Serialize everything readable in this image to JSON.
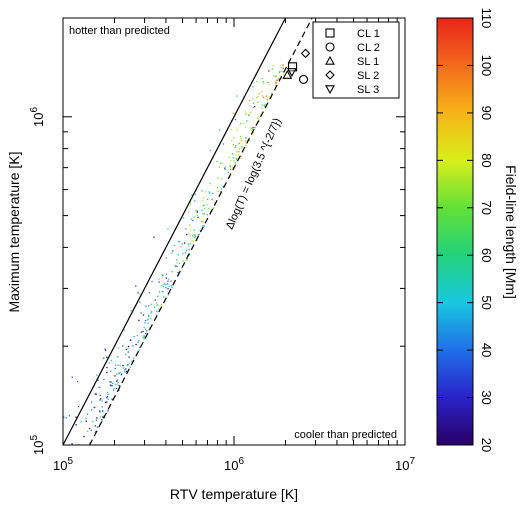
{
  "chart_data": {
    "type": "scatter",
    "xscale": "log",
    "yscale": "log",
    "xlim": [
      100000,
      10000000
    ],
    "ylim": [
      100000,
      2000000
    ],
    "xlabel": "RTV temperature [K]",
    "ylabel": "Maximum temperature [K]",
    "x_tick_labels": [
      {
        "mantissa": "10",
        "exp": "5"
      },
      {
        "mantissa": "10",
        "exp": "6"
      },
      {
        "mantissa": "10",
        "exp": "7"
      }
    ],
    "y_tick_labels": [
      {
        "mantissa": "10",
        "exp": "5"
      },
      {
        "mantissa": "10",
        "exp": "6"
      }
    ],
    "annotations": {
      "top_left": "hotter than predicted",
      "bottom_right": "cooler than predicted",
      "dashed_line_label": "Δlog(T) = log(3.5 ^{-2/7})"
    },
    "reference_lines": [
      {
        "style": "solid",
        "relation": "y = x"
      },
      {
        "style": "dashed",
        "relation": "y = x · 3.5^(-2/7)"
      }
    ],
    "legend": {
      "placement": "top-right",
      "entries": [
        {
          "marker": "square",
          "label": "CL 1"
        },
        {
          "marker": "circle",
          "label": "CL 2"
        },
        {
          "marker": "triangle-up",
          "label": "SL 1"
        },
        {
          "marker": "diamond",
          "label": "SL 2"
        },
        {
          "marker": "triangle-down",
          "label": "SL 3"
        }
      ]
    },
    "marked_points": [
      {
        "marker": "square",
        "x": 2200000,
        "y": 1420000
      },
      {
        "marker": "circle",
        "x": 2550000,
        "y": 1300000
      },
      {
        "marker": "triangle-up",
        "x": 2050000,
        "y": 1340000
      },
      {
        "marker": "diamond",
        "x": 2620000,
        "y": 1560000
      },
      {
        "marker": "triangle-down",
        "x": 2180000,
        "y": 1370000
      }
    ],
    "colorbar": {
      "label": "Field-line length [Mm]",
      "range": [
        20,
        110
      ],
      "ticks": [
        "20",
        "30",
        "40",
        "50",
        "60",
        "70",
        "80",
        "90",
        "100",
        "110"
      ],
      "colors": [
        "#2a0066",
        "#2a22c8",
        "#1f6fe8",
        "#18c7e0",
        "#22d27a",
        "#63e038",
        "#d8ee1a",
        "#f6b417",
        "#f46a1c",
        "#e8241a"
      ]
    },
    "scatter_summary": "dense cloud of field-line points, colored by field-line length"
  }
}
